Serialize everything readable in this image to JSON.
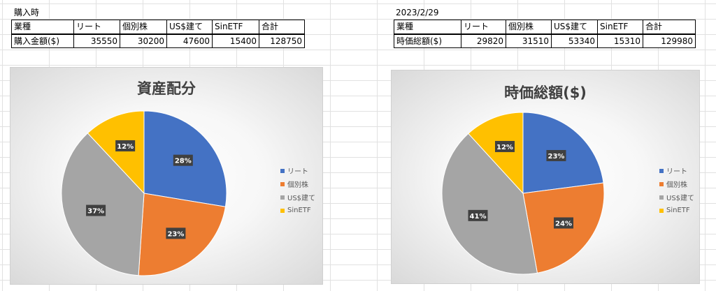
{
  "left": {
    "label": "購入時",
    "table": {
      "header": [
        "業種",
        "リート",
        "個別株",
        "US$建て",
        "SinETF",
        "合計"
      ],
      "row": [
        "購入金額($)",
        "35550",
        "30200",
        "47600",
        "15400",
        "128750"
      ]
    }
  },
  "right": {
    "label": "2023/2/29",
    "table": {
      "header": [
        "業種",
        "リート",
        "個別株",
        "US$建て",
        "SinETF",
        "合計"
      ],
      "row": [
        "時価総額($)",
        "29820",
        "31510",
        "53340",
        "15310",
        "129980"
      ]
    }
  },
  "colors": {
    "blue": "#4472c4",
    "orange": "#ed7d31",
    "gray": "#a5a5a5",
    "yellow": "#ffc000"
  },
  "chart_data": [
    {
      "type": "pie",
      "title": "資産配分",
      "categories": [
        "リート",
        "個別株",
        "US$建て",
        "SinETF"
      ],
      "values": [
        35550,
        30200,
        47600,
        15400
      ],
      "data_labels": [
        "28%",
        "23%",
        "37%",
        "12%"
      ],
      "legend": "right"
    },
    {
      "type": "pie",
      "title": "時価総額($)",
      "categories": [
        "リート",
        "個別株",
        "US$建て",
        "SinETF"
      ],
      "values": [
        29820,
        31510,
        53340,
        15310
      ],
      "data_labels": [
        "23%",
        "24%",
        "41%",
        "12%"
      ],
      "legend": "right"
    }
  ]
}
